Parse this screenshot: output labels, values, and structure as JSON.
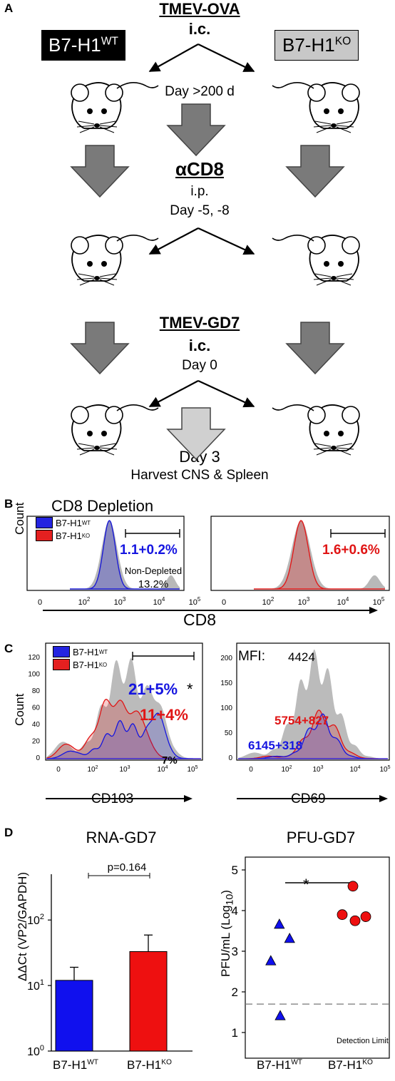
{
  "panel_a": {
    "letter": "A",
    "wt_label": "B7-H1",
    "wt_sup": "WT",
    "ko_label": "B7-H1",
    "ko_sup": "KO",
    "step1": {
      "title": "TMEV-OVA",
      "route": "i.c.",
      "day": "Day >200 d"
    },
    "step2": {
      "title": "αCD8",
      "route": "i.p.",
      "day": "Day -5, -8"
    },
    "step3": {
      "title": "TMEV-GD7",
      "route": "i.c.",
      "day": "Day 0"
    },
    "final_day": "Day 3",
    "harvest": "Harvest CNS & Spleen"
  },
  "panel_b": {
    "letter": "B",
    "title": "CD8 Depletion",
    "legend_wt": "B7-H1",
    "legend_wt_sup": "WT",
    "legend_ko": "B7-H1",
    "legend_ko_sup": "KO",
    "ylabel": "Count",
    "xlabel": "CD8",
    "wt_pct": "1.1+0.2%",
    "ko_pct": "1.6+0.6%",
    "nondepleted_label": "Non-Depleted",
    "nondepleted_pct": "13.2%",
    "ticks": [
      "0",
      "10",
      "10",
      "10",
      "10"
    ],
    "tick_exps": [
      "",
      "2",
      "3",
      "4",
      "5"
    ],
    "colors": {
      "wt": "#1a1ad4",
      "ko": "#e11a1a",
      "gray": "#b8b8b8"
    }
  },
  "panel_c": {
    "letter": "C",
    "legend_wt": "B7-H1",
    "legend_wt_sup": "WT",
    "legend_ko": "B7-H1",
    "legend_ko_sup": "KO",
    "ylabel": "Count",
    "left_xlabel": "CD103",
    "right_xlabel": "CD69",
    "wt_pct": "21+5%",
    "star": "*",
    "ko_pct": "11+4%",
    "gray_pct": "7%",
    "mfi_label": "MFI:",
    "mfi_gray": "4424",
    "mfi_ko": "5754+827",
    "mfi_wt": "6145+318",
    "left_yticks": [
      "0",
      "20",
      "40",
      "60",
      "80",
      "100",
      "120"
    ],
    "right_yticks": [
      "0",
      "50",
      "100",
      "150",
      "200"
    ]
  },
  "panel_d": {
    "letter": "D",
    "left_title": "RNA-GD7",
    "left_ylabel": "ΔΔCt (VP2/GAPDH)",
    "pvalue": "p=0.164",
    "right_title": "PFU-GD7",
    "right_ylabel": "PFU/mL (Log",
    "right_ylabel_sub": "10",
    "detection_limit": "Detection Limit",
    "star": "*",
    "xcat_wt": "B7-H1",
    "xcat_wt_sup": "WT",
    "xcat_ko": "B7-H1",
    "xcat_ko_sup": "KO",
    "left_yticks": [
      "10",
      "10",
      "10"
    ],
    "left_ytick_exps": [
      "0",
      "1",
      "2"
    ],
    "right_yticks": [
      "1",
      "2",
      "3",
      "4",
      "5"
    ]
  },
  "chart_data": [
    {
      "type": "bar",
      "title": "RNA-GD7",
      "ylabel": "ΔΔCt (VP2/GAPDH)",
      "yscale": "log",
      "ylim": [
        1,
        500
      ],
      "categories": [
        "B7-H1WT",
        "B7-H1KO"
      ],
      "values": [
        12,
        33
      ],
      "errors": [
        7,
        26
      ],
      "colors": [
        "#1010ee",
        "#ee1010"
      ],
      "annotation": "p=0.164"
    },
    {
      "type": "scatter",
      "title": "PFU-GD7",
      "ylabel": "PFU/mL (Log10)",
      "ylim": [
        1,
        5
      ],
      "categories": [
        "B7-H1WT",
        "B7-H1KO"
      ],
      "series": [
        {
          "group": "B7-H1WT",
          "marker": "triangle",
          "color": "#1010ee",
          "points": [
            {
              "x": -0.22,
              "y": 2.75
            },
            {
              "x": -0.02,
              "y": 3.65
            },
            {
              "x": 0.22,
              "y": 3.3
            },
            {
              "x": 0.0,
              "y": 1.4
            }
          ]
        },
        {
          "group": "B7-H1KO",
          "marker": "circle",
          "color": "#ee1010",
          "points": [
            {
              "x": -0.25,
              "y": 3.9
            },
            {
              "x": 0.0,
              "y": 4.6
            },
            {
              "x": 0.05,
              "y": 3.75
            },
            {
              "x": 0.3,
              "y": 3.85
            }
          ]
        }
      ],
      "detection_limit": 1.7,
      "annotation": "*"
    }
  ]
}
